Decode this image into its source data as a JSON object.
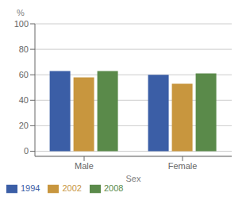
{
  "chart_data": {
    "type": "bar",
    "categories": [
      "Male",
      "Female"
    ],
    "series": [
      {
        "name": "1994",
        "color": "#3B5EA6",
        "values": [
          63,
          60
        ]
      },
      {
        "name": "2002",
        "color": "#C8963E",
        "values": [
          58,
          53
        ]
      },
      {
        "name": "2008",
        "color": "#5A8A4A",
        "values": [
          63,
          61
        ]
      }
    ],
    "xlabel": "Sex",
    "ylabel": "%",
    "ylim": [
      -4,
      100
    ],
    "yticks": [
      0,
      20,
      40,
      60,
      80,
      100
    ],
    "grid": true,
    "legend": "bottom"
  }
}
